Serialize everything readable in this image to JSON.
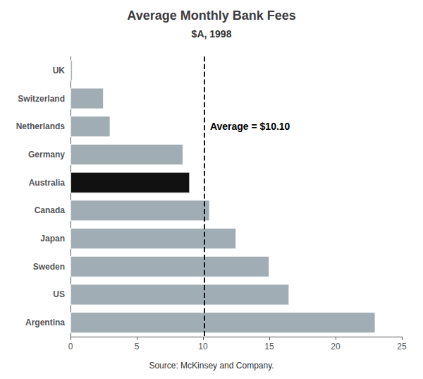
{
  "chart_data": {
    "type": "bar",
    "orientation": "horizontal",
    "title": "Average Monthly Bank Fees",
    "subtitle": "$A, 1998",
    "categories": [
      "UK",
      "Switzerland",
      "Netherlands",
      "Germany",
      "Australia",
      "Canada",
      "Japan",
      "Sweden",
      "US",
      "Argentina"
    ],
    "values": [
      0.15,
      2.5,
      3.0,
      8.5,
      9.0,
      10.5,
      12.5,
      15.0,
      16.5,
      23.0
    ],
    "colors": [
      "#a0adb5",
      "#a0adb5",
      "#a0adb5",
      "#a0adb5",
      "#111111",
      "#a0adb5",
      "#a0adb5",
      "#a0adb5",
      "#a0adb5",
      "#a0adb5"
    ],
    "xlim": [
      0,
      25
    ],
    "xticks": [
      0,
      5,
      10,
      15,
      20,
      25
    ],
    "reference_line": {
      "value": 10.1,
      "label": "Average = $10.10",
      "line_style": "dashed"
    },
    "source": "Source: McKinsey and Company.",
    "grid": false
  }
}
